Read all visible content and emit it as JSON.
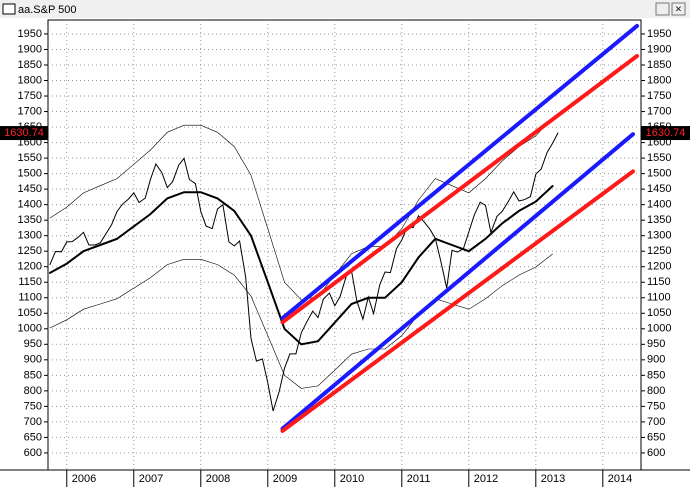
{
  "chart_data": {
    "type": "line",
    "title": "aa.S&P 500",
    "xlim": [
      2005.72,
      2014.57
    ],
    "ylim": [
      545,
      1995
    ],
    "xticks": [
      2006,
      2007,
      2008,
      2009,
      2010,
      2011,
      2012,
      2013,
      2014
    ],
    "yticks": [
      600,
      650,
      700,
      750,
      800,
      850,
      900,
      950,
      1000,
      1050,
      1100,
      1150,
      1200,
      1250,
      1300,
      1350,
      1400,
      1450,
      1500,
      1550,
      1600,
      1650,
      1700,
      1750,
      1800,
      1850,
      1900,
      1950
    ],
    "grid": true,
    "last_price": 1630.74,
    "series": [
      {
        "color": "#000000",
        "style": "thin",
        "x": [
          2005.75,
          2005.83,
          2005.92,
          2006.0,
          2006.08,
          2006.17,
          2006.25,
          2006.33,
          2006.42,
          2006.5,
          2006.58,
          2006.67,
          2006.75,
          2006.83,
          2006.92,
          2007.0,
          2007.08,
          2007.17,
          2007.25,
          2007.33,
          2007.42,
          2007.5,
          2007.58,
          2007.67,
          2007.75,
          2007.83,
          2007.92,
          2008.0,
          2008.08,
          2008.17,
          2008.25,
          2008.33,
          2008.42,
          2008.5,
          2008.58,
          2008.67,
          2008.75,
          2008.83,
          2008.92,
          2009.0,
          2009.08,
          2009.17,
          2009.25,
          2009.33,
          2009.42,
          2009.5,
          2009.58,
          2009.67,
          2009.75,
          2009.83,
          2009.92,
          2010.0,
          2010.08,
          2010.17,
          2010.25,
          2010.33,
          2010.42,
          2010.5,
          2010.58,
          2010.67,
          2010.75,
          2010.83,
          2010.92,
          2011.0,
          2011.08,
          2011.17,
          2011.25,
          2011.33,
          2011.42,
          2011.5,
          2011.58,
          2011.67,
          2011.75,
          2011.83,
          2011.92,
          2012.0,
          2012.08,
          2012.17,
          2012.25,
          2012.33,
          2012.42,
          2012.5,
          2012.58,
          2012.67,
          2012.75,
          2012.83,
          2012.92,
          2013.0,
          2013.08,
          2013.17,
          2013.25,
          2013.33
        ],
        "values": [
          1207,
          1249,
          1248,
          1280,
          1281,
          1295,
          1311,
          1270,
          1270,
          1277,
          1304,
          1336,
          1378,
          1401,
          1418,
          1438,
          1407,
          1421,
          1482,
          1531,
          1503,
          1455,
          1474,
          1527,
          1549,
          1481,
          1468,
          1378,
          1331,
          1323,
          1386,
          1400,
          1280,
          1267,
          1283,
          1166,
          969,
          896,
          903,
          826,
          735,
          798,
          873,
          919,
          919,
          987,
          1021,
          1057,
          1036,
          1096,
          1115,
          1074,
          1104,
          1169,
          1187,
          1089,
          1031,
          1102,
          1049,
          1141,
          1183,
          1181,
          1258,
          1286,
          1327,
          1326,
          1364,
          1345,
          1321,
          1292,
          1219,
          1131,
          1253,
          1247,
          1258,
          1312,
          1366,
          1408,
          1398,
          1310,
          1362,
          1379,
          1407,
          1441,
          1412,
          1416,
          1426,
          1498,
          1515,
          1569,
          1598,
          1631
        ]
      },
      {
        "color": "#000000",
        "style": "medium",
        "x": [
          2005.75,
          2006.0,
          2006.25,
          2006.5,
          2006.75,
          2007.0,
          2007.25,
          2007.5,
          2007.75,
          2008.0,
          2008.25,
          2008.5,
          2008.75,
          2009.0,
          2009.25,
          2009.5,
          2009.75,
          2010.0,
          2010.25,
          2010.5,
          2010.75,
          2011.0,
          2011.25,
          2011.5,
          2011.75,
          2012.0,
          2012.25,
          2012.5,
          2012.75,
          2013.0,
          2013.25
        ],
        "values": [
          1180,
          1210,
          1250,
          1270,
          1290,
          1330,
          1370,
          1420,
          1440,
          1440,
          1420,
          1380,
          1300,
          1150,
          1000,
          950,
          960,
          1020,
          1080,
          1100,
          1100,
          1150,
          1230,
          1290,
          1270,
          1250,
          1290,
          1340,
          1380,
          1410,
          1460
        ]
      },
      {
        "color": "#000000",
        "style": "hair",
        "x": [
          2005.75,
          2006.0,
          2006.25,
          2006.5,
          2006.75,
          2007.0,
          2007.25,
          2007.5,
          2007.75,
          2008.0,
          2008.25,
          2008.5,
          2008.75,
          2009.0,
          2009.25,
          2009.5,
          2009.75,
          2010.0,
          2010.25,
          2010.5,
          2010.75,
          2011.0,
          2011.25,
          2011.5,
          2011.75,
          2012.0,
          2012.25,
          2012.5,
          2012.75,
          2013.0,
          2013.25
        ],
        "values": [
          1357,
          1392,
          1438,
          1461,
          1484,
          1530,
          1576,
          1633,
          1656,
          1656,
          1633,
          1587,
          1495,
          1323,
          1150,
          1093,
          1104,
          1173,
          1242,
          1265,
          1265,
          1323,
          1415,
          1484,
          1461,
          1438,
          1484,
          1541,
          1587,
          1622,
          1679
        ]
      },
      {
        "color": "#000000",
        "style": "hair",
        "x": [
          2005.75,
          2006.0,
          2006.25,
          2006.5,
          2006.75,
          2007.0,
          2007.25,
          2007.5,
          2007.75,
          2008.0,
          2008.25,
          2008.5,
          2008.75,
          2009.0,
          2009.25,
          2009.5,
          2009.75,
          2010.0,
          2010.25,
          2010.5,
          2010.75,
          2011.0,
          2011.25,
          2011.5,
          2011.75,
          2012.0,
          2012.25,
          2012.5,
          2012.75,
          2013.0,
          2013.25
        ],
        "values": [
          1003,
          1029,
          1063,
          1080,
          1097,
          1131,
          1165,
          1207,
          1224,
          1224,
          1207,
          1173,
          1105,
          978,
          850,
          808,
          816,
          867,
          918,
          935,
          935,
          978,
          1046,
          1097,
          1080,
          1063,
          1097,
          1139,
          1173,
          1199,
          1241
        ]
      },
      {
        "color": "#1a1aff",
        "style": "trend",
        "x": [
          2009.22,
          2014.51
        ],
        "values": [
          1034,
          1976
        ]
      },
      {
        "color": "#ff1a1a",
        "style": "trend",
        "x": [
          2009.22,
          2014.51
        ],
        "values": [
          1021,
          1879
        ]
      },
      {
        "color": "#1a1aff",
        "style": "trend",
        "x": [
          2009.22,
          2014.45
        ],
        "values": [
          678,
          1627
        ]
      },
      {
        "color": "#ff1a1a",
        "style": "trend",
        "x": [
          2009.22,
          2014.45
        ],
        "values": [
          671,
          1507
        ]
      }
    ]
  }
}
